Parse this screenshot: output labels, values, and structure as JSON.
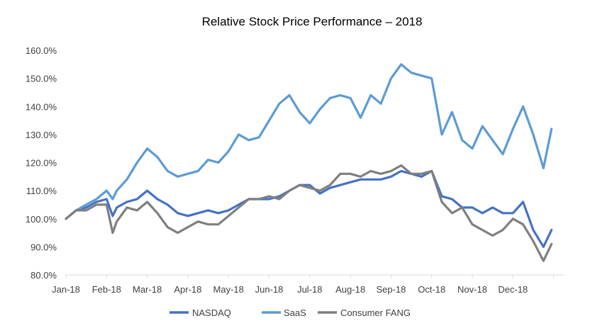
{
  "chart_data": {
    "type": "line",
    "title": "Relative Stock Price Performance – 2018",
    "xlabel": "",
    "ylabel": "",
    "ylim": [
      80,
      160
    ],
    "y_ticks": [
      "80.0%",
      "90.0%",
      "100.0%",
      "110.0%",
      "120.0%",
      "130.0%",
      "140.0%",
      "150.0%",
      "160.0%"
    ],
    "x_ticks": [
      "Jan-18",
      "Feb-18",
      "Mar-18",
      "Apr-18",
      "May-18",
      "Jun-18",
      "Jul-18",
      "Aug-18",
      "Sep-18",
      "Oct-18",
      "Nov-18",
      "Dec-18"
    ],
    "grid": false,
    "legend_position": "bottom",
    "x_months": [
      0,
      0.25,
      0.5,
      0.75,
      1,
      1.15,
      1.25,
      1.5,
      1.75,
      2,
      2.25,
      2.5,
      2.75,
      3,
      3.25,
      3.5,
      3.75,
      4,
      4.25,
      4.5,
      4.75,
      5,
      5.25,
      5.5,
      5.75,
      6,
      6.25,
      6.5,
      6.75,
      7,
      7.25,
      7.5,
      7.75,
      8,
      8.25,
      8.5,
      8.75,
      9,
      9.25,
      9.5,
      9.75,
      10,
      10.25,
      10.5,
      10.75,
      11,
      11.25,
      11.5,
      11.75,
      11.95
    ],
    "series": [
      {
        "name": "NASDAQ",
        "color": "#4472C4",
        "values": [
          100,
          103,
          104,
          106,
          107,
          101,
          104,
          106,
          107,
          110,
          107,
          105,
          102,
          101,
          102,
          103,
          102,
          103,
          105,
          107,
          107,
          107,
          108,
          110,
          112,
          112,
          109,
          111,
          112,
          113,
          114,
          114,
          114,
          115,
          117,
          116,
          115,
          117,
          108,
          107,
          104,
          104,
          102,
          104,
          102,
          102,
          106,
          96,
          90,
          96
        ]
      },
      {
        "name": "SaaS",
        "color": "#5B9BD5",
        "values": [
          100,
          103,
          105,
          107,
          110,
          107,
          110,
          114,
          120,
          125,
          122,
          117,
          115,
          116,
          117,
          121,
          120,
          124,
          130,
          128,
          129,
          135,
          141,
          144,
          138,
          134,
          139,
          143,
          144,
          143,
          136,
          144,
          141,
          150,
          155,
          152,
          151,
          150,
          130,
          138,
          128,
          125,
          133,
          128,
          123,
          132,
          140,
          130,
          118,
          132
        ]
      },
      {
        "name": "Consumer FANG",
        "color": "#7F7F7F",
        "values": [
          100,
          103,
          103,
          105,
          105,
          95,
          99,
          104,
          103,
          106,
          102,
          97,
          95,
          97,
          99,
          98,
          98,
          101,
          104,
          107,
          107,
          108,
          107,
          110,
          112,
          111,
          110,
          112,
          116,
          116,
          115,
          117,
          116,
          117,
          119,
          116,
          116,
          117,
          106,
          102,
          104,
          98,
          96,
          94,
          96,
          100,
          98,
          92,
          85,
          91
        ]
      }
    ]
  }
}
